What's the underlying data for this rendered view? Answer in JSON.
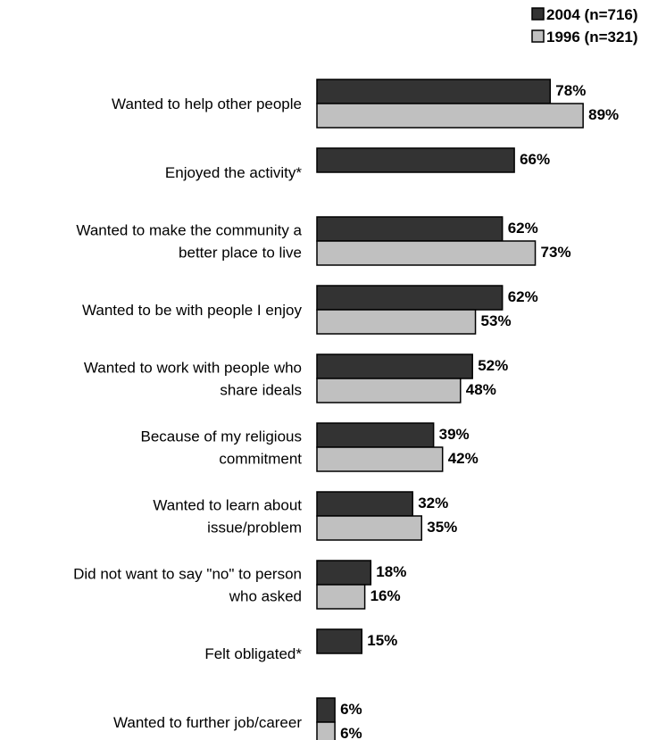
{
  "chart_data": {
    "type": "bar",
    "orientation": "horizontal",
    "legend_position": "top-right",
    "grid": false,
    "xlim": [
      0,
      100
    ],
    "categories": [
      [
        "Wanted to help other people"
      ],
      [
        "Enjoyed the activity*"
      ],
      [
        "Wanted to make the community a",
        "better place to live"
      ],
      [
        "Wanted to be with people I enjoy"
      ],
      [
        "Wanted to work with people who",
        "share ideals"
      ],
      [
        "Because of my religious",
        "commitment"
      ],
      [
        "Wanted to learn about",
        "issue/problem"
      ],
      [
        "Did not want to say \"no\" to person",
        "who asked"
      ],
      [
        "Felt obligated*"
      ],
      [
        "Wanted to further job/career"
      ]
    ],
    "series": [
      {
        "name": "2004 (n=716)",
        "color": "#333333",
        "values": [
          78,
          66,
          62,
          62,
          52,
          39,
          32,
          18,
          15,
          6
        ]
      },
      {
        "name": "1996 (n=321)",
        "color": "#c0c0c0",
        "values": [
          89,
          null,
          73,
          53,
          48,
          42,
          35,
          16,
          null,
          6
        ]
      }
    ],
    "value_suffix": "%"
  }
}
